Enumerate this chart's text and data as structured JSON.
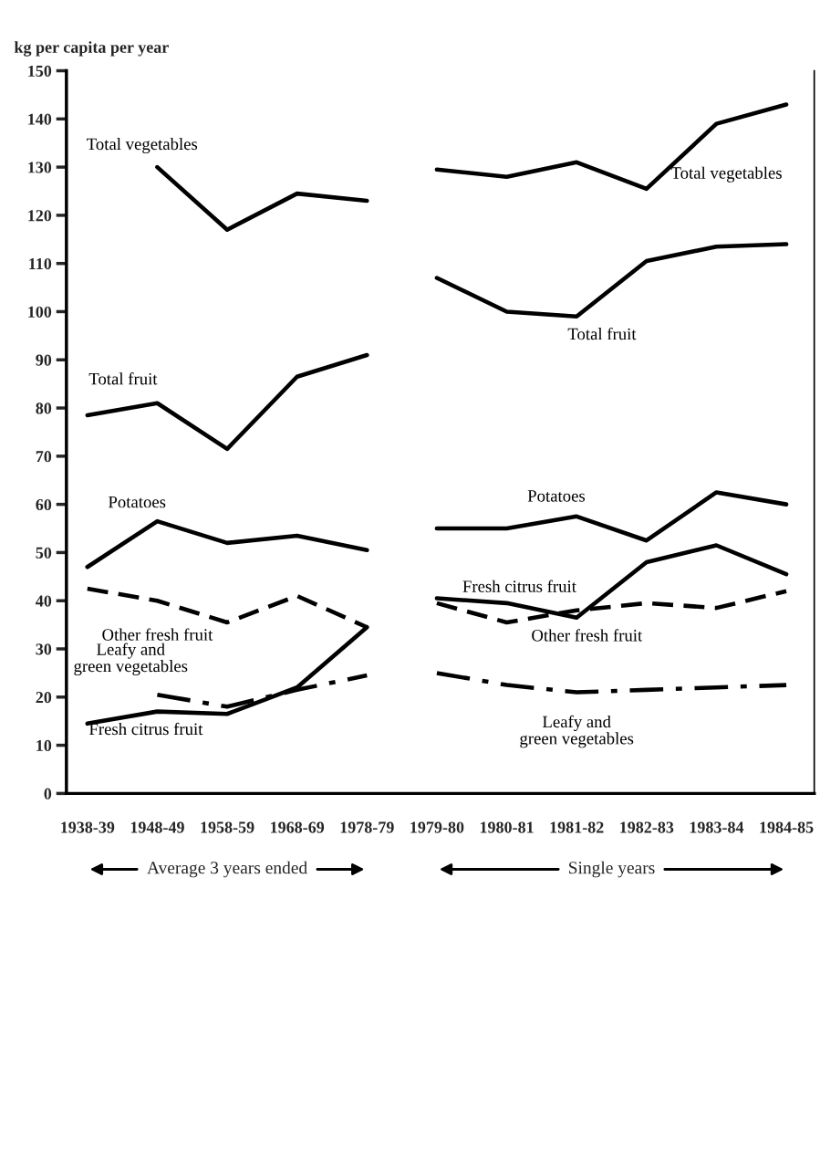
{
  "chart_data": {
    "type": "line",
    "ylabel": "kg per capita per year",
    "categories": [
      "1938-39",
      "1948-49",
      "1958-59",
      "1968-69",
      "1978-79",
      "1979-80",
      "1980-81",
      "1981-82",
      "1982-83",
      "1983-84",
      "1984-85"
    ],
    "ylim": [
      0,
      150
    ],
    "yticks": [
      0,
      10,
      20,
      30,
      40,
      50,
      60,
      70,
      80,
      90,
      100,
      110,
      120,
      130,
      140,
      150
    ],
    "grid": false,
    "legend": false,
    "marker": "none",
    "series": [
      {
        "name": "Total vegetables",
        "color": "#000000",
        "line_style": "solid",
        "values": [
          null,
          130,
          117,
          124.5,
          123,
          null,
          null,
          null,
          null,
          null,
          null
        ]
      },
      {
        "name": "Total vegetables",
        "color": "#000000",
        "line_style": "solid",
        "values": [
          null,
          null,
          null,
          null,
          null,
          129.5,
          128,
          131,
          125.5,
          139,
          143
        ]
      },
      {
        "name": "Total fruit",
        "color": "#000000",
        "line_style": "solid",
        "values": [
          78.5,
          81,
          71.5,
          86.5,
          91,
          null,
          null,
          null,
          null,
          null,
          null
        ]
      },
      {
        "name": "Total fruit",
        "color": "#000000",
        "line_style": "solid",
        "values": [
          null,
          null,
          null,
          null,
          null,
          107,
          100,
          99,
          110.5,
          113.5,
          114
        ]
      },
      {
        "name": "Potatoes",
        "color": "#000000",
        "line_style": "solid",
        "values": [
          47,
          56.5,
          52,
          53.5,
          50.5,
          null,
          null,
          null,
          null,
          null,
          null
        ]
      },
      {
        "name": "Potatoes",
        "color": "#000000",
        "line_style": "solid",
        "values": [
          null,
          null,
          null,
          null,
          null,
          55,
          55,
          57.5,
          52.5,
          62.5,
          60
        ]
      },
      {
        "name": "Fresh citrus fruit",
        "color": "#000000",
        "line_style": "solid",
        "values": [
          14.5,
          17,
          16.5,
          22,
          34.5,
          null,
          null,
          null,
          null,
          null,
          null
        ]
      },
      {
        "name": "Fresh citrus fruit",
        "color": "#000000",
        "line_style": "solid",
        "values": [
          null,
          null,
          null,
          null,
          null,
          40.5,
          39.5,
          36.5,
          48,
          51.5,
          45.5
        ]
      },
      {
        "name": "Other fresh fruit",
        "color": "#000000",
        "line_style": "dashed",
        "values": [
          42.5,
          40,
          35.5,
          41,
          34.5,
          null,
          null,
          null,
          null,
          null,
          null
        ]
      },
      {
        "name": "Other fresh fruit",
        "color": "#000000",
        "line_style": "dashed",
        "values": [
          null,
          null,
          null,
          null,
          null,
          39.5,
          35.5,
          38,
          39.5,
          38.5,
          42
        ]
      },
      {
        "name": "Leafy and\ngreen vegetables",
        "color": "#000000",
        "line_style": "dashdot",
        "values": [
          null,
          20.5,
          18,
          21.5,
          24.5,
          null,
          null,
          null,
          null,
          null,
          null
        ]
      },
      {
        "name": "Leafy and\ngreen vegetables",
        "color": "#000000",
        "line_style": "dashdot",
        "values": [
          null,
          null,
          null,
          null,
          null,
          25,
          22.5,
          21,
          21.5,
          22,
          22.5
        ]
      }
    ],
    "annotations": [
      "Average 3 years ended",
      "Single years"
    ]
  }
}
